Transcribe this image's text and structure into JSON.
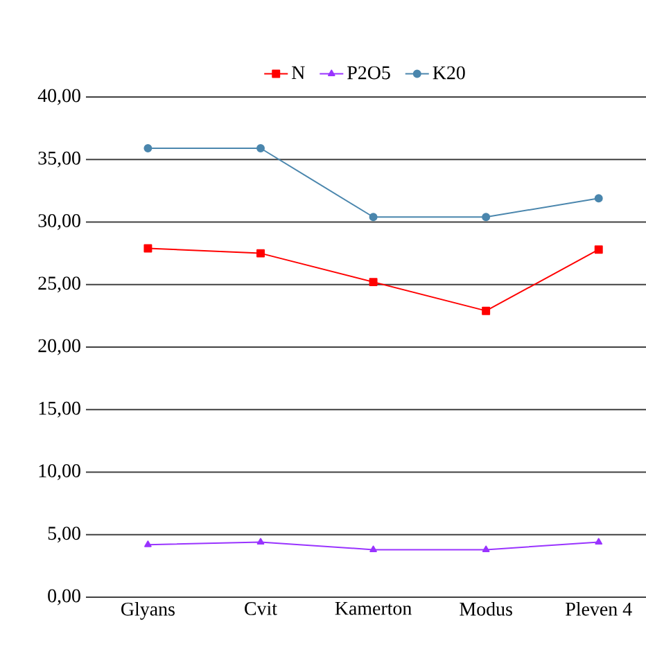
{
  "chart_data": {
    "type": "line",
    "categories": [
      "Glyans",
      "Cvit",
      "Kamerton",
      "Modus",
      "Pleven 4"
    ],
    "series": [
      {
        "name": "N",
        "color": "#ff0000",
        "marker": "square",
        "values": [
          27.9,
          27.5,
          25.2,
          22.9,
          27.8
        ]
      },
      {
        "name": "P2O5",
        "color": "#9933ff",
        "marker": "triangle",
        "values": [
          4.2,
          4.4,
          3.8,
          3.8,
          4.4
        ]
      },
      {
        "name": "K20",
        "color": "#4a86ad",
        "marker": "circle",
        "values": [
          35.9,
          35.9,
          30.4,
          30.4,
          31.9
        ]
      }
    ],
    "ylim": [
      0,
      40
    ],
    "yticks": [
      {
        "value": 0,
        "label": "0,00"
      },
      {
        "value": 5,
        "label": "5,00"
      },
      {
        "value": 10,
        "label": "10,00"
      },
      {
        "value": 15,
        "label": "15,00"
      },
      {
        "value": 20,
        "label": "20,00"
      },
      {
        "value": 25,
        "label": "25,00"
      },
      {
        "value": 30,
        "label": "30,00"
      },
      {
        "value": 35,
        "label": "35,00"
      },
      {
        "value": 40,
        "label": "40,00"
      }
    ],
    "grid": "y",
    "legend": "top",
    "line_style": "solid"
  }
}
